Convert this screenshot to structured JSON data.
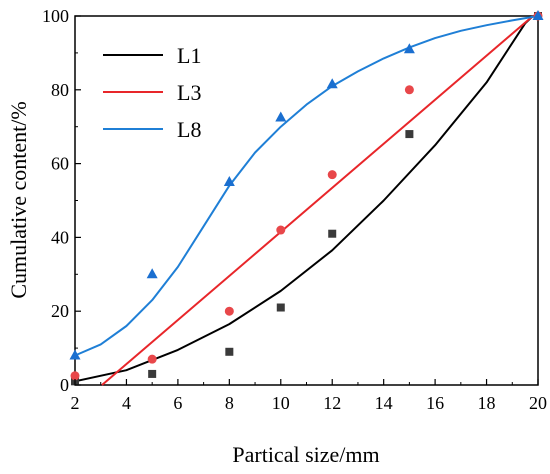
{
  "chart_data": {
    "type": "scatter",
    "xlabel": "Partical size/mm",
    "ylabel": "Cumulative content/%",
    "xlim": [
      2,
      20
    ],
    "ylim": [
      0,
      100
    ],
    "x_ticks": [
      2,
      4,
      6,
      8,
      10,
      12,
      14,
      16,
      18,
      20
    ],
    "y_ticks": [
      0,
      20,
      40,
      60,
      80,
      100
    ],
    "legend_position": "top-left",
    "grid": false,
    "series": [
      {
        "name": "L1",
        "color": "#000000",
        "marker": "square",
        "marker_color": "#3a3a3a",
        "points": [
          [
            2,
            1
          ],
          [
            5,
            3
          ],
          [
            8,
            9
          ],
          [
            10,
            21
          ],
          [
            12,
            41
          ],
          [
            15,
            68
          ],
          [
            20,
            100
          ]
        ],
        "fit": [
          [
            2,
            1
          ],
          [
            4,
            4
          ],
          [
            6,
            9.5
          ],
          [
            8,
            16.5
          ],
          [
            10,
            25.5
          ],
          [
            12,
            36.5
          ],
          [
            14,
            50
          ],
          [
            16,
            65
          ],
          [
            18,
            82
          ],
          [
            19.5,
            98
          ],
          [
            19.8,
            100
          ]
        ]
      },
      {
        "name": "L3",
        "color": "#e8262a",
        "marker": "circle",
        "marker_color": "#e8474a",
        "points": [
          [
            2,
            2.5
          ],
          [
            5,
            7
          ],
          [
            8,
            20
          ],
          [
            10,
            42
          ],
          [
            12,
            57
          ],
          [
            15,
            80
          ],
          [
            20,
            100
          ]
        ],
        "fit": [
          [
            3.05,
            0
          ],
          [
            19.8,
            100
          ]
        ]
      },
      {
        "name": "L8",
        "color": "#1f7fd6",
        "marker": "triangle",
        "marker_color": "#1a6fd0",
        "points": [
          [
            2,
            8
          ],
          [
            5,
            30
          ],
          [
            8,
            55
          ],
          [
            10,
            72.5
          ],
          [
            12,
            81.5
          ],
          [
            15,
            91
          ],
          [
            20,
            100
          ]
        ],
        "fit": [
          [
            2,
            8
          ],
          [
            3,
            11
          ],
          [
            4,
            16
          ],
          [
            5,
            23
          ],
          [
            6,
            32
          ],
          [
            7,
            43
          ],
          [
            8,
            54
          ],
          [
            9,
            63
          ],
          [
            10,
            70
          ],
          [
            11,
            76
          ],
          [
            12,
            81
          ],
          [
            13,
            85
          ],
          [
            14,
            88.5
          ],
          [
            15,
            91.5
          ],
          [
            16,
            94
          ],
          [
            17,
            96
          ],
          [
            18,
            97.5
          ],
          [
            19,
            98.8
          ],
          [
            20,
            100
          ]
        ]
      }
    ]
  }
}
